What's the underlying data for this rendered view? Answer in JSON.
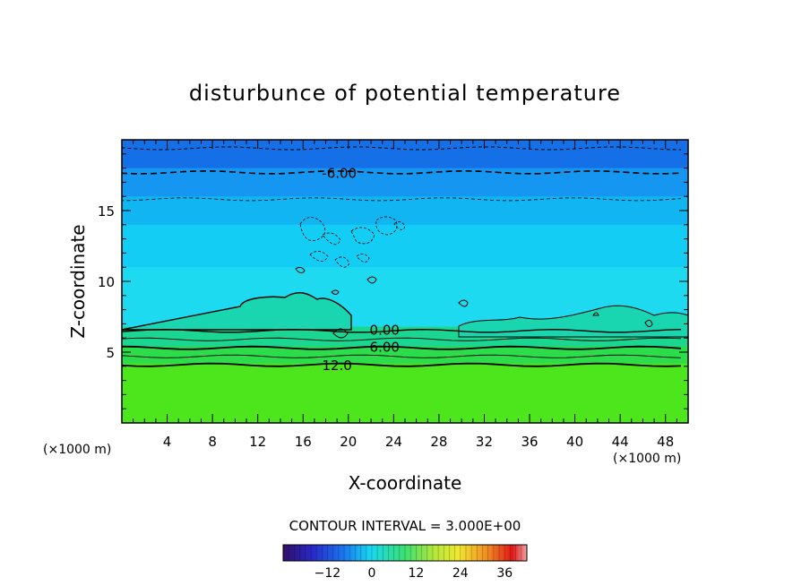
{
  "chart_data": {
    "type": "heatmap",
    "title": "disturbunce of potential temperature",
    "xlabel": "X-coordinate",
    "ylabel": "Z-coordinate",
    "xunit": "(×1000 m)",
    "yunit": "(×1000 m)",
    "xlim": [
      0,
      50
    ],
    "ylim": [
      0,
      20
    ],
    "xticks": [
      "4",
      "8",
      "12",
      "16",
      "20",
      "24",
      "28",
      "32",
      "36",
      "40",
      "44",
      "48"
    ],
    "yticks": [
      "5",
      "10",
      "15"
    ],
    "contour_interval": "CONTOUR INTERVAL = 3.000E+00",
    "colorbar": {
      "min": -24,
      "max": 42,
      "ticks": [
        "-12",
        "0",
        "12",
        "24",
        "36"
      ]
    },
    "contour_labels": [
      "-6.00",
      "0.00",
      "6.00",
      "12.0"
    ],
    "field_layers": [
      {
        "z_top": 4.2,
        "value": 12,
        "color": "#4de61c"
      },
      {
        "z_top": 5.4,
        "value": 8,
        "color": "#2ddc4a"
      },
      {
        "z_top": 6.8,
        "value": 4,
        "color": "#1ad690"
      },
      {
        "z_top": 11,
        "value": -3,
        "color": "#1edaf0"
      },
      {
        "z_top": 14,
        "value": -5,
        "color": "#14cdf5"
      },
      {
        "z_top": 16,
        "value": -7,
        "color": "#10b5f2"
      },
      {
        "z_top": 18,
        "value": -9,
        "color": "#1596f0"
      },
      {
        "z_top": 20,
        "value": -12,
        "color": "#1570e8"
      }
    ]
  }
}
